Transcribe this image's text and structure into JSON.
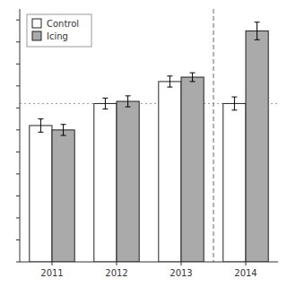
{
  "chart_data": {
    "type": "bar",
    "categories": [
      "2011",
      "2012",
      "2013",
      "2014"
    ],
    "series": [
      {
        "name": "Control",
        "color": "#ffffff",
        "values": [
          0.62,
          0.72,
          0.82,
          0.72
        ],
        "errors": [
          0.03,
          0.025,
          0.025,
          0.03
        ]
      },
      {
        "name": "Icing",
        "color": "#aaaaaa",
        "values": [
          0.6,
          0.73,
          0.84,
          1.05
        ],
        "errors": [
          0.025,
          0.025,
          0.02,
          0.04
        ]
      }
    ],
    "ylim": [
      0.0,
      1.15
    ],
    "yticks": [
      0,
      0.1,
      0.2,
      0.3,
      0.4,
      0.5,
      0.6,
      0.7,
      0.8,
      0.9,
      1.0,
      1.1
    ],
    "tick_labels": "x",
    "hline": 0.72,
    "vline": 2.5,
    "legend": "upper-left",
    "grid": false
  }
}
